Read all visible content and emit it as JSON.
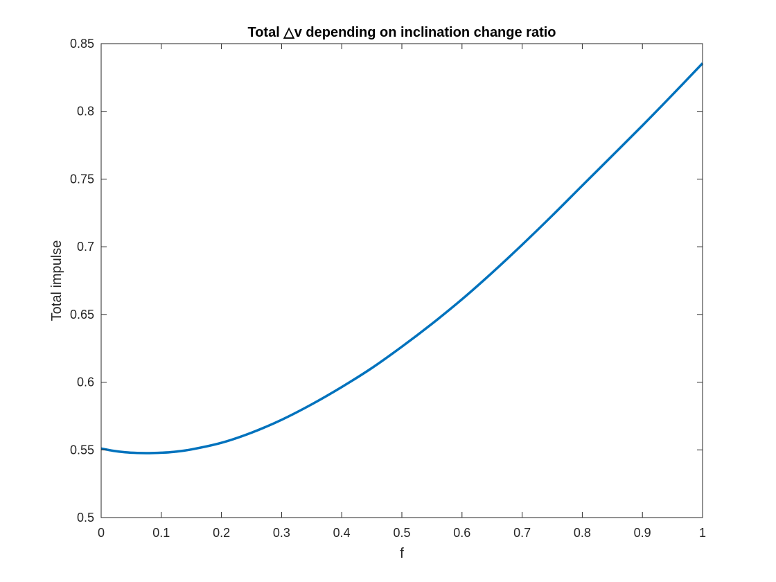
{
  "chart_data": {
    "type": "line",
    "title": "Total △v depending on inclination change ratio",
    "xlabel": "f",
    "ylabel": "Total impulse",
    "xlim": [
      0,
      1
    ],
    "ylim": [
      0.5,
      0.85
    ],
    "xticks": [
      0,
      0.1,
      0.2,
      0.3,
      0.4,
      0.5,
      0.6,
      0.7,
      0.8,
      0.9,
      1
    ],
    "xtick_labels": [
      "0",
      "0.1",
      "0.2",
      "0.3",
      "0.4",
      "0.5",
      "0.6",
      "0.7",
      "0.8",
      "0.9",
      "1"
    ],
    "yticks": [
      0.5,
      0.55,
      0.6,
      0.65,
      0.7,
      0.75,
      0.8,
      0.85
    ],
    "ytick_labels": [
      "0.5",
      "0.55",
      "0.6",
      "0.65",
      "0.7",
      "0.75",
      "0.8",
      "0.85"
    ],
    "grid": false,
    "box": true,
    "series": [
      {
        "color": "#0072BD",
        "x": [
          0,
          0.02,
          0.04,
          0.06,
          0.08,
          0.1,
          0.12,
          0.15,
          0.2,
          0.25,
          0.3,
          0.35,
          0.4,
          0.45,
          0.5,
          0.55,
          0.6,
          0.65,
          0.7,
          0.75,
          0.8,
          0.85,
          0.9,
          0.95,
          1
        ],
        "y": [
          0.551,
          0.5493,
          0.5482,
          0.5477,
          0.5476,
          0.5479,
          0.5485,
          0.5503,
          0.5552,
          0.5627,
          0.5722,
          0.5836,
          0.5964,
          0.6104,
          0.6262,
          0.6431,
          0.6612,
          0.6808,
          0.7015,
          0.723,
          0.7452,
          0.7673,
          0.7895,
          0.8123,
          0.8355
        ]
      }
    ]
  }
}
